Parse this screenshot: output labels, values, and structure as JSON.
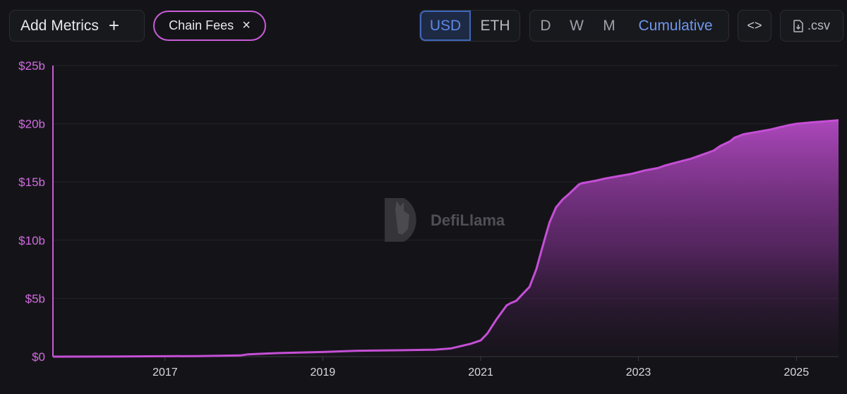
{
  "toolbar": {
    "add_metrics_label": "Add Metrics",
    "add_icon": "+",
    "chip_label": "Chain Fees",
    "chip_close_icon": "×",
    "currency_options": [
      "USD",
      "ETH"
    ],
    "currency_selected": "USD",
    "period_options": [
      "D",
      "W",
      "M",
      "Cumulative"
    ],
    "period_selected": "Cumulative",
    "embed_icon": "<>",
    "csv_label": ".csv"
  },
  "watermark": {
    "text": "DefiLlama"
  },
  "colors": {
    "accent": "#c95bd8",
    "line": "#c54fd6",
    "selected_blue": "#5d88e6",
    "background": "#141418"
  },
  "chart_data": {
    "type": "area",
    "title": "",
    "xlabel": "",
    "ylabel": "",
    "y_unit": "$ billions",
    "ylim": [
      0,
      25
    ],
    "y_ticks": [
      0,
      5,
      10,
      15,
      20,
      25
    ],
    "y_tick_labels": [
      "$0",
      "$5b",
      "$10b",
      "$15b",
      "$20b",
      "$25b"
    ],
    "x_tick_labels": [
      "2017",
      "2019",
      "2021",
      "2023",
      "2025"
    ],
    "x_ticks": [
      "2017-01-01",
      "2019-01-01",
      "2021-01-01",
      "2023-01-01",
      "2025-01-01"
    ],
    "xlim": [
      "2015-08-01",
      "2025-07-15"
    ],
    "grid": true,
    "series": [
      {
        "x": [
          "2015-08-01",
          "2016-06-01",
          "2017-06-01",
          "2017-12-15",
          "2018-01-20",
          "2018-06-01",
          "2019-01-01",
          "2019-06-01",
          "2020-01-01",
          "2020-06-01",
          "2020-08-15",
          "2020-10-01",
          "2020-11-15",
          "2021-01-01",
          "2021-02-01",
          "2021-03-15",
          "2021-05-01",
          "2021-05-20",
          "2021-06-15",
          "2021-07-15",
          "2021-08-15",
          "2021-09-15",
          "2021-10-15",
          "2021-11-15",
          "2021-12-15",
          "2022-01-15",
          "2022-02-15",
          "2022-03-15",
          "2022-04-01",
          "2022-04-15",
          "2022-05-15",
          "2022-06-15",
          "2022-08-01",
          "2022-10-01",
          "2022-12-01",
          "2023-02-01",
          "2023-04-01",
          "2023-05-01",
          "2023-07-01",
          "2023-09-01",
          "2023-11-01",
          "2023-12-15",
          "2024-01-15",
          "2024-03-01",
          "2024-03-20",
          "2024-05-01",
          "2024-07-01",
          "2024-09-01",
          "2024-10-15",
          "2024-12-01",
          "2025-01-01",
          "2025-03-01",
          "2025-07-15"
        ],
        "values": [
          0,
          0.02,
          0.05,
          0.1,
          0.2,
          0.3,
          0.4,
          0.5,
          0.55,
          0.6,
          0.7,
          0.9,
          1.1,
          1.4,
          2.0,
          3.2,
          4.4,
          4.6,
          4.8,
          5.4,
          6.0,
          7.5,
          9.5,
          11.5,
          12.8,
          13.5,
          14.0,
          14.5,
          14.8,
          14.9,
          15.0,
          15.1,
          15.3,
          15.5,
          15.7,
          16.0,
          16.2,
          16.4,
          16.7,
          17.0,
          17.4,
          17.7,
          18.1,
          18.5,
          18.8,
          19.1,
          19.3,
          19.5,
          19.7,
          19.9,
          20.0,
          20.1,
          20.3
        ]
      }
    ]
  }
}
